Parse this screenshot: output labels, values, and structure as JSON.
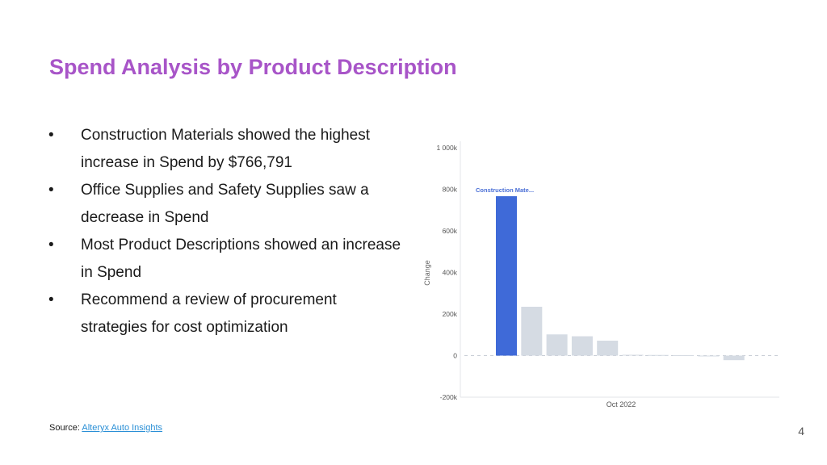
{
  "slide": {
    "title": "Spend Analysis by Product Description",
    "bullets": [
      "Construction Materials showed the highest increase in Spend by $766,791",
      "Office Supplies and Safety Supplies saw a decrease in Spend",
      "Most Product Descriptions showed an increase in Spend",
      "Recommend a review of procurement strategies for cost optimization"
    ],
    "bullet_symbol": "•",
    "source_label": "Source:",
    "source_link": "Alteryx Auto Insights",
    "page_number": "4"
  },
  "chart_data": {
    "type": "bar",
    "ylabel": "Change",
    "xlabel": "Oct 2022",
    "ylim": [
      -200000,
      1000000
    ],
    "y_ticks": [
      1000000,
      800000,
      600000,
      400000,
      200000,
      0,
      -200000
    ],
    "y_tick_labels": [
      "1 000k",
      "800k",
      "600k",
      "400k",
      "200k",
      "0",
      "-200k"
    ],
    "values": [
      766791,
      235000,
      102000,
      93000,
      72000,
      4000,
      3000,
      2000,
      -3000,
      -22000
    ],
    "highlight_index": 0,
    "highlight_label": "Construction Mate...",
    "colors": {
      "highlight": "#3f6ad8",
      "default": "#d5dbe3",
      "label": "#4a6fd6"
    }
  }
}
